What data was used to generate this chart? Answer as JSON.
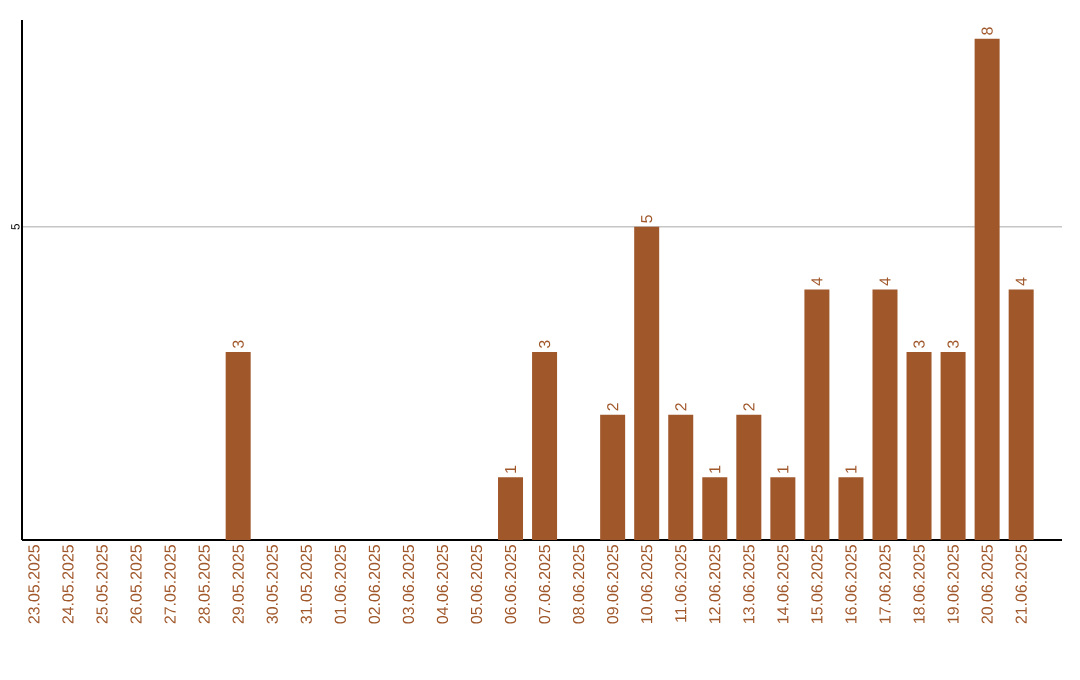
{
  "chart_data": {
    "type": "bar",
    "categories": [
      "23.05.2025",
      "24.05.2025",
      "25.05.2025",
      "26.05.2025",
      "27.05.2025",
      "28.05.2025",
      "29.05.2025",
      "30.05.2025",
      "31.05.2025",
      "01.06.2025",
      "02.06.2025",
      "03.06.2025",
      "04.06.2025",
      "05.06.2025",
      "06.06.2025",
      "07.06.2025",
      "08.06.2025",
      "09.06.2025",
      "10.06.2025",
      "11.06.2025",
      "12.06.2025",
      "13.06.2025",
      "14.06.2025",
      "15.06.2025",
      "16.06.2025",
      "17.06.2025",
      "18.06.2025",
      "19.06.2025",
      "20.06.2025",
      "21.06.2025"
    ],
    "values": [
      0,
      0,
      0,
      0,
      0,
      0,
      3,
      0,
      0,
      0,
      0,
      0,
      0,
      0,
      1,
      3,
      0,
      2,
      5,
      2,
      1,
      2,
      1,
      4,
      1,
      4,
      3,
      3,
      8,
      4
    ],
    "value_labels": [
      null,
      null,
      null,
      null,
      null,
      null,
      "3",
      null,
      null,
      null,
      null,
      null,
      null,
      null,
      "1",
      "3",
      null,
      "2",
      "5",
      "2",
      "1",
      "2",
      "1",
      "4",
      "1",
      "4",
      "3",
      "3",
      "8",
      "4"
    ],
    "color": "#a0572a",
    "ylim": [
      0,
      8.3
    ],
    "yticks": [
      5
    ],
    "grid": "y"
  }
}
